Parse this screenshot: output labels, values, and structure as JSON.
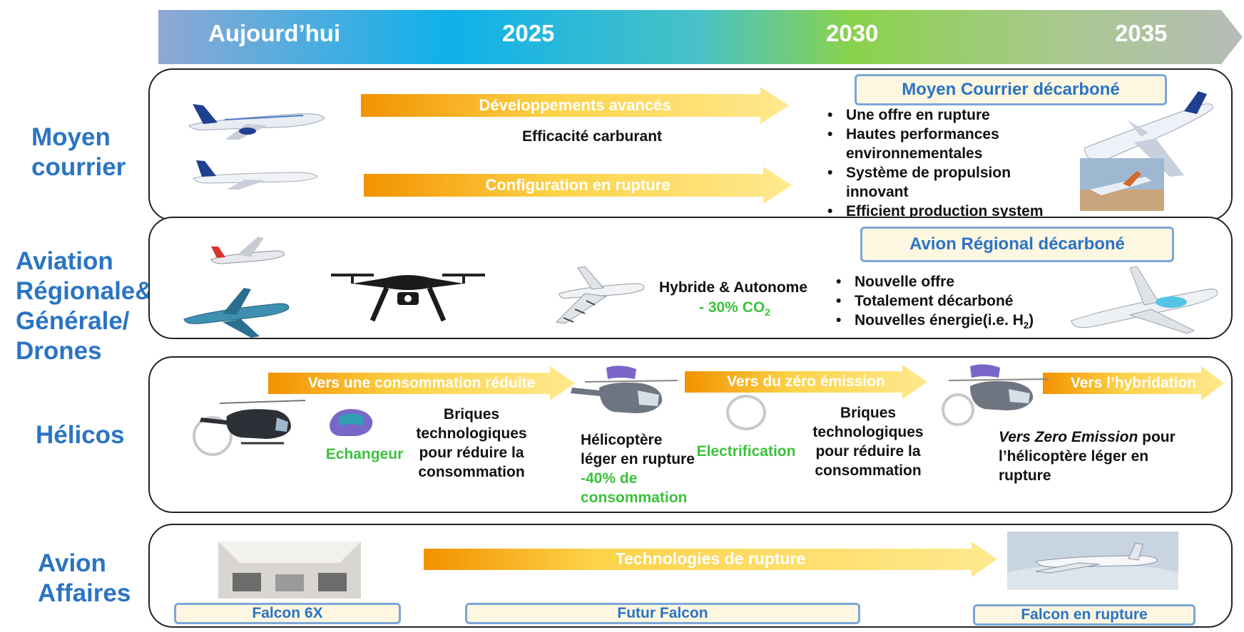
{
  "timeline": {
    "labels": [
      "Aujourd’hui",
      "2025",
      "2030",
      "2035"
    ]
  },
  "rows": {
    "moyen": {
      "label": [
        "Moyen",
        "courrier"
      ],
      "arrow1": "Développements avancés",
      "sub1": "Efficacité carburant",
      "arrow2": "Configuration en rupture",
      "box": "Moyen  Courrier  décarboné",
      "bullets": [
        "Une offre en rupture",
        "Hautes performances",
        "Système de propulsion",
        "Efficient production system"
      ],
      "bullet_cont": [
        "environnementales",
        "innovant"
      ]
    },
    "regional": {
      "label": [
        "Aviation",
        "Régionale&",
        "Générale/",
        "Drones"
      ],
      "hybride": "Hybride & Autonome",
      "co2": "- 30% CO",
      "co2_sub": "2",
      "box": "Avion Régional décarboné",
      "bullets": [
        "Nouvelle offre",
        "Totalement décarboné",
        "Nouvelles énergie(i.e. H",
        ")"
      ],
      "h2_sub": "2"
    },
    "helicos": {
      "label": "Hélicos",
      "arrow1": "Vers une consommation réduite",
      "arrow2": "Vers du zéro émission",
      "arrow3": "Vers l’hybridation",
      "echangeur": "Echangeur",
      "briques1": [
        "Briques",
        "technologiques",
        "pour réduire la",
        "consommation"
      ],
      "heli": [
        "Hélicoptère",
        "léger en rupture"
      ],
      "heli_green": [
        "-40% de",
        "consommation"
      ],
      "electrification": "Electrification",
      "briques2": [
        "Briques",
        "technologiques",
        "pour réduire la",
        "consommation"
      ],
      "vers_italic": "Vers Zero Emission",
      "vers_rest": [
        " pour",
        "l’hélicoptère léger en",
        "rupture"
      ]
    },
    "affaires": {
      "label": [
        "Avion",
        "Affaires"
      ],
      "arrow": "Technologies de rupture",
      "box1": "Falcon 6X",
      "box2": "Futur Falcon",
      "box3": "Falcon en rupture"
    }
  },
  "colors": {
    "rowlabel": "#2a74c4",
    "green": "#3cc13c",
    "arrow_start": "#f29100",
    "arrow_end": "#ffe27a"
  }
}
